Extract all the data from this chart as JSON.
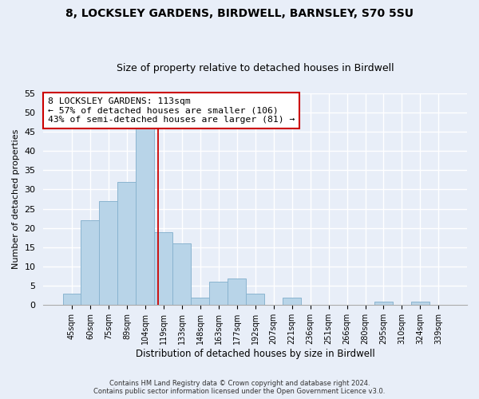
{
  "title": "8, LOCKSLEY GARDENS, BIRDWELL, BARNSLEY, S70 5SU",
  "subtitle": "Size of property relative to detached houses in Birdwell",
  "xlabel": "Distribution of detached houses by size in Birdwell",
  "ylabel": "Number of detached properties",
  "bar_labels": [
    "45sqm",
    "60sqm",
    "75sqm",
    "89sqm",
    "104sqm",
    "119sqm",
    "133sqm",
    "148sqm",
    "163sqm",
    "177sqm",
    "192sqm",
    "207sqm",
    "221sqm",
    "236sqm",
    "251sqm",
    "266sqm",
    "280sqm",
    "295sqm",
    "310sqm",
    "324sqm",
    "339sqm"
  ],
  "bar_values": [
    3,
    22,
    27,
    32,
    46,
    19,
    16,
    2,
    6,
    7,
    3,
    0,
    2,
    0,
    0,
    0,
    0,
    1,
    0,
    1,
    0
  ],
  "bar_color": "#b8d4e8",
  "bar_edge_color": "#8ab4d0",
  "vline_color": "#cc0000",
  "vline_x": 4.72,
  "ylim": [
    0,
    55
  ],
  "yticks": [
    0,
    5,
    10,
    15,
    20,
    25,
    30,
    35,
    40,
    45,
    50,
    55
  ],
  "annotation_title": "8 LOCKSLEY GARDENS: 113sqm",
  "annotation_line1": "← 57% of detached houses are smaller (106)",
  "annotation_line2": "43% of semi-detached houses are larger (81) →",
  "annotation_box_color": "#ffffff",
  "annotation_box_edge": "#cc0000",
  "footer1": "Contains HM Land Registry data © Crown copyright and database right 2024.",
  "footer2": "Contains public sector information licensed under the Open Government Licence v3.0.",
  "background_color": "#e8eef8",
  "plot_background": "#e8eef8",
  "grid_color": "#ffffff",
  "title_fontsize": 10,
  "subtitle_fontsize": 9
}
